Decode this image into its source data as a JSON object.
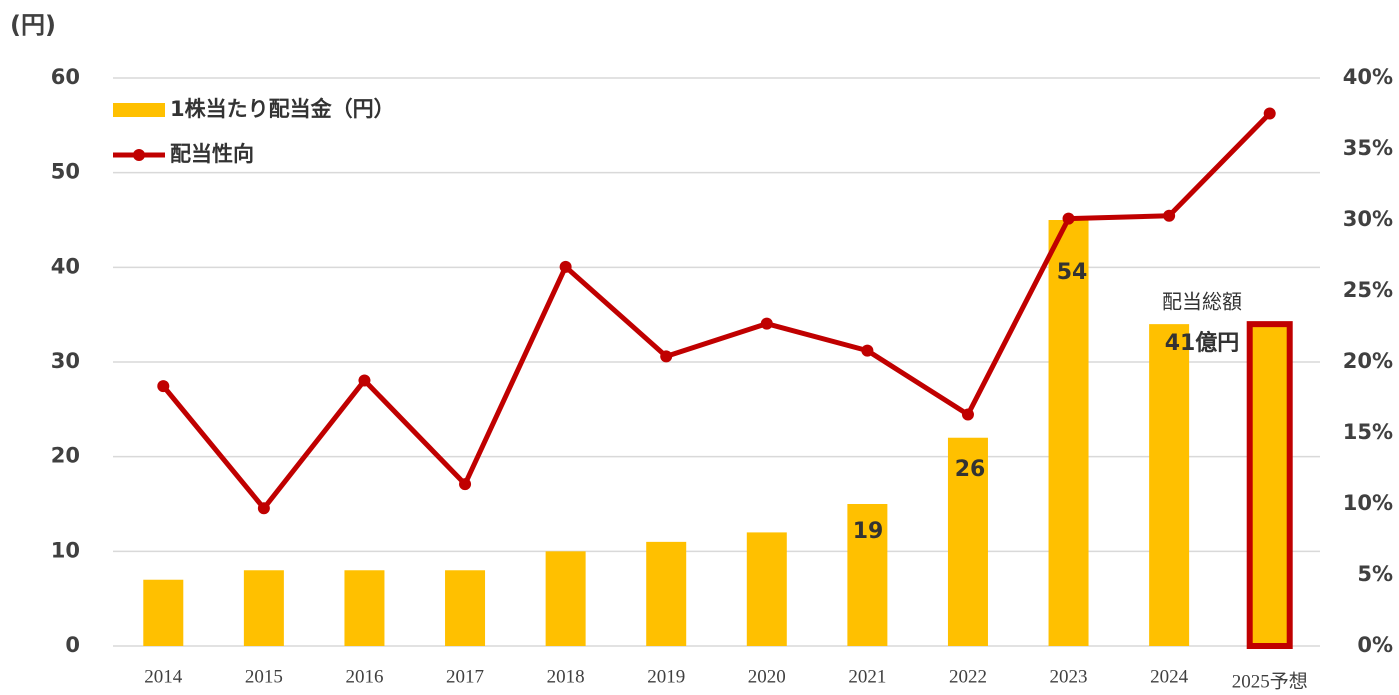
{
  "chart_data": {
    "type": "bar_line",
    "y_axis_label": "(円)",
    "categories": [
      "2014",
      "2015",
      "2016",
      "2017",
      "2018",
      "2019",
      "2020",
      "2021",
      "2022",
      "2023",
      "2024",
      "2025予想"
    ],
    "series": [
      {
        "name": "1株当たり配当金（円）",
        "type": "bar",
        "color": "#ffc000",
        "axis": "y",
        "values": [
          7,
          8,
          8,
          8,
          10,
          11,
          12,
          15,
          22,
          45,
          34,
          34
        ],
        "edge_colors": [
          null,
          null,
          null,
          null,
          null,
          null,
          null,
          null,
          null,
          null,
          null,
          "#c00000"
        ]
      },
      {
        "name": "配当性向",
        "type": "line",
        "color": "#c00000",
        "axis": "y2",
        "values": [
          18.3,
          9.7,
          18.7,
          11.4,
          26.7,
          20.4,
          22.7,
          20.8,
          16.3,
          30.1,
          30.3,
          37.5
        ]
      }
    ],
    "annotations": [
      "19",
      "26",
      "54",
      "配当総額",
      "41億円"
    ],
    "ylim": [
      0,
      60
    ],
    "yticks": [
      0,
      10,
      20,
      30,
      40,
      50,
      60
    ],
    "y2lim": [
      0,
      40
    ],
    "y2ticks": [
      {
        "value": 0,
        "label": "0%"
      },
      {
        "value": 5,
        "label": "5%"
      },
      {
        "value": 10,
        "label": "10%"
      },
      {
        "value": 15,
        "label": "15%"
      },
      {
        "value": 20,
        "label": "20%"
      },
      {
        "value": 25,
        "label": "25%"
      },
      {
        "value": 30,
        "label": "30%"
      },
      {
        "value": 35,
        "label": "35%"
      },
      {
        "value": 40,
        "label": "40%"
      }
    ],
    "grid": true,
    "legend": "top-left"
  }
}
